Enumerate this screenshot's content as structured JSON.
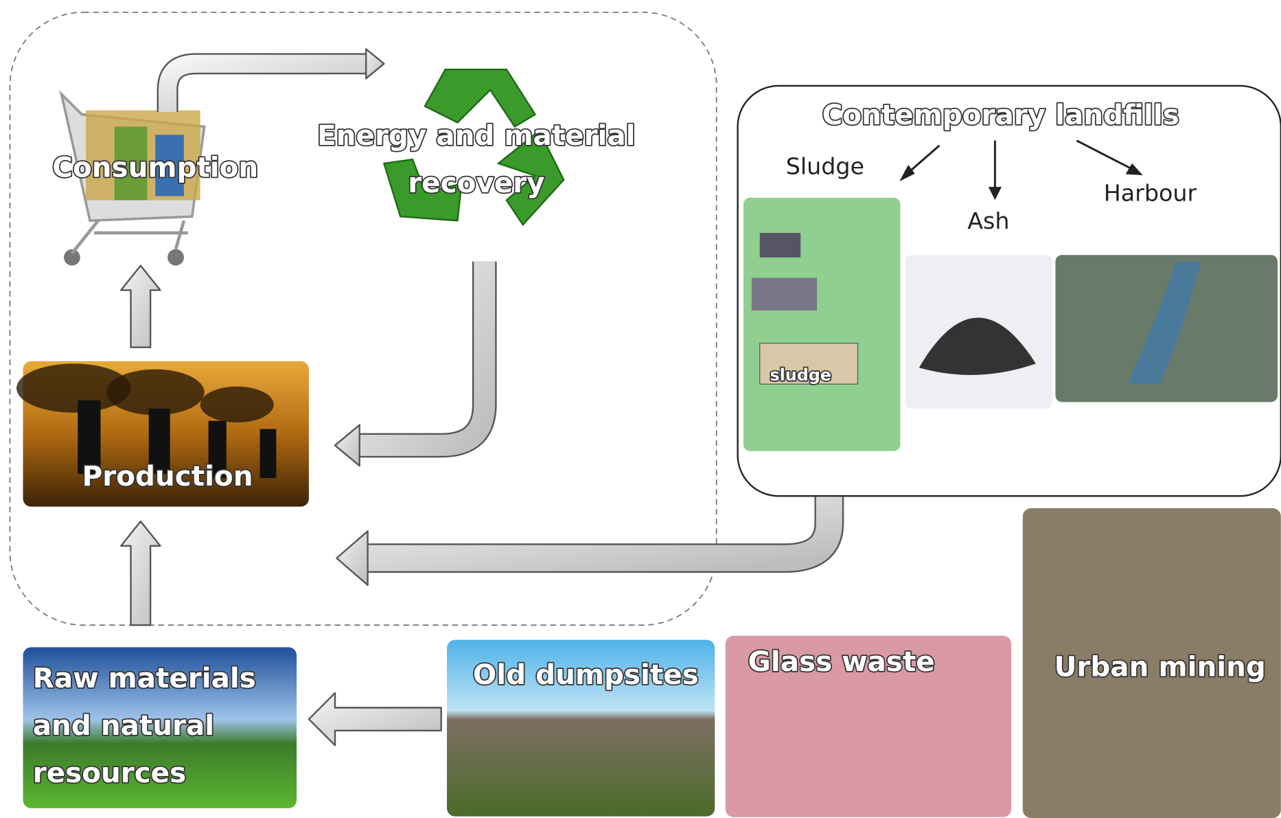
{
  "nodes": [
    {
      "lines": [
        "Consumption"
      ]
    },
    {
      "lines": [
        "Energy and material",
        "recovery"
      ]
    },
    {
      "lines": [
        "Production"
      ]
    },
    {
      "lines": [
        "Raw materials",
        "and natural",
        "resources"
      ]
    },
    {
      "lines": [
        "Contemporary landfills"
      ]
    },
    {
      "lines": [
        "Sludge"
      ]
    },
    {
      "lines": [
        "Ash"
      ]
    },
    {
      "lines": [
        "Harbour"
      ]
    },
    {
      "lines": [
        "sludge"
      ]
    },
    {
      "lines": [
        "Old dumpsites"
      ]
    },
    {
      "lines": [
        "Glass waste"
      ]
    },
    {
      "lines": [
        "Urban mining"
      ]
    }
  ]
}
